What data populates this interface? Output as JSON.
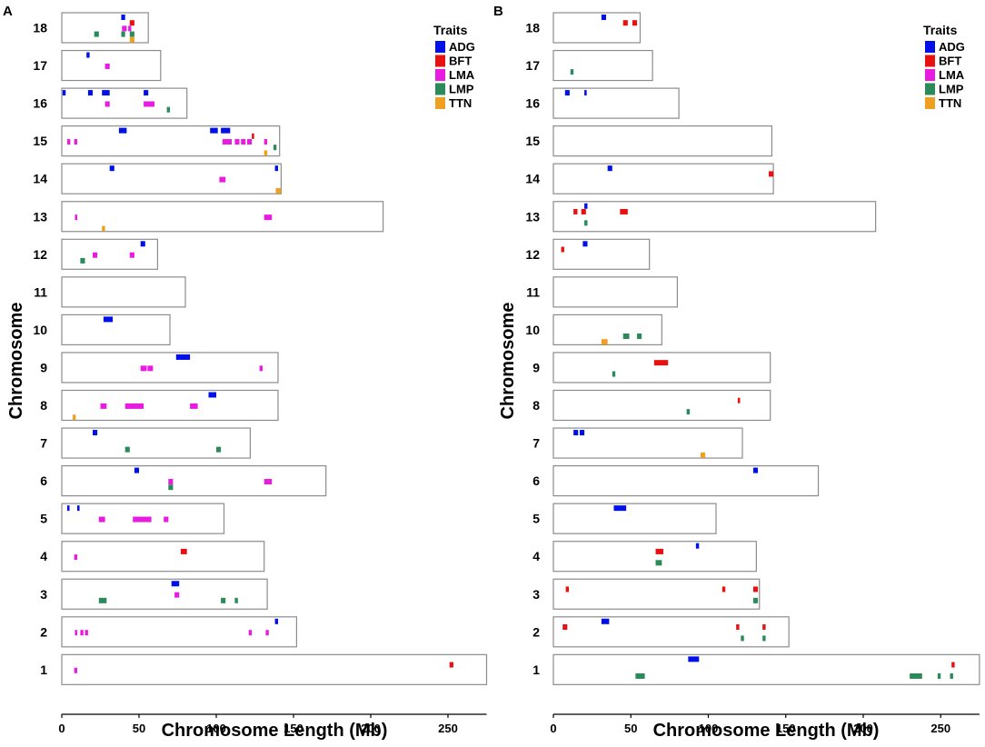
{
  "chart_data": [
    {
      "panel": "A",
      "type": "chromosome-ideogram",
      "xlabel": "Chromosome Length (Mb)",
      "ylabel": "Chromosome",
      "xlim": [
        0,
        275
      ],
      "xticks": [
        0,
        50,
        100,
        150,
        200,
        250
      ],
      "legend": {
        "title": "Traits",
        "position": "top-right",
        "entries": [
          "ADG",
          "BFT",
          "LMA",
          "LMP",
          "TTN"
        ]
      },
      "chromosomes": [
        {
          "name": "18",
          "length": 56
        },
        {
          "name": "17",
          "length": 64
        },
        {
          "name": "16",
          "length": 81
        },
        {
          "name": "15",
          "length": 141
        },
        {
          "name": "14",
          "length": 142
        },
        {
          "name": "13",
          "length": 208
        },
        {
          "name": "12",
          "length": 62
        },
        {
          "name": "11",
          "length": 80
        },
        {
          "name": "10",
          "length": 70
        },
        {
          "name": "9",
          "length": 140
        },
        {
          "name": "8",
          "length": 140
        },
        {
          "name": "7",
          "length": 122
        },
        {
          "name": "6",
          "length": 171
        },
        {
          "name": "5",
          "length": 105
        },
        {
          "name": "4",
          "length": 131
        },
        {
          "name": "3",
          "length": 133
        },
        {
          "name": "2",
          "length": 152
        },
        {
          "name": "1",
          "length": 275
        }
      ],
      "qtls": [
        {
          "chr": "18",
          "trait": "ADG",
          "start": 38.5,
          "end": 41
        },
        {
          "chr": "18",
          "trait": "BFT",
          "start": 44,
          "end": 47
        },
        {
          "chr": "18",
          "trait": "LMA",
          "start": 39,
          "end": 42
        },
        {
          "chr": "18",
          "trait": "LMA",
          "start": 43,
          "end": 45
        },
        {
          "chr": "18",
          "trait": "LMP",
          "start": 21,
          "end": 24
        },
        {
          "chr": "18",
          "trait": "LMP",
          "start": 38.5,
          "end": 41
        },
        {
          "chr": "18",
          "trait": "LMP",
          "start": 44,
          "end": 47
        },
        {
          "chr": "18",
          "trait": "TTN",
          "start": 44,
          "end": 47
        },
        {
          "chr": "17",
          "trait": "ADG",
          "start": 16,
          "end": 18
        },
        {
          "chr": "17",
          "trait": "LMA",
          "start": 28,
          "end": 31
        },
        {
          "chr": "16",
          "trait": "ADG",
          "start": 0.5,
          "end": 2.5
        },
        {
          "chr": "16",
          "trait": "ADG",
          "start": 17,
          "end": 20
        },
        {
          "chr": "16",
          "trait": "ADG",
          "start": 26,
          "end": 31
        },
        {
          "chr": "16",
          "trait": "ADG",
          "start": 53,
          "end": 56
        },
        {
          "chr": "16",
          "trait": "LMA",
          "start": 28,
          "end": 31
        },
        {
          "chr": "16",
          "trait": "LMA",
          "start": 53,
          "end": 60
        },
        {
          "chr": "16",
          "trait": "LMP",
          "start": 68,
          "end": 70
        },
        {
          "chr": "15",
          "trait": "ADG",
          "start": 37,
          "end": 42
        },
        {
          "chr": "15",
          "trait": "ADG",
          "start": 96,
          "end": 101
        },
        {
          "chr": "15",
          "trait": "ADG",
          "start": 103,
          "end": 109
        },
        {
          "chr": "15",
          "trait": "BFT",
          "start": 123,
          "end": 124.5
        },
        {
          "chr": "15",
          "trait": "LMA",
          "start": 3.5,
          "end": 5.5
        },
        {
          "chr": "15",
          "trait": "LMA",
          "start": 8,
          "end": 10
        },
        {
          "chr": "15",
          "trait": "LMA",
          "start": 104,
          "end": 110
        },
        {
          "chr": "15",
          "trait": "LMA",
          "start": 112,
          "end": 115
        },
        {
          "chr": "15",
          "trait": "LMA",
          "start": 116,
          "end": 119
        },
        {
          "chr": "15",
          "trait": "LMA",
          "start": 120,
          "end": 123
        },
        {
          "chr": "15",
          "trait": "LMA",
          "start": 131,
          "end": 133
        },
        {
          "chr": "15",
          "trait": "LMP",
          "start": 137,
          "end": 139
        },
        {
          "chr": "15",
          "trait": "TTN",
          "start": 131,
          "end": 133
        },
        {
          "chr": "14",
          "trait": "ADG",
          "start": 31,
          "end": 34
        },
        {
          "chr": "14",
          "trait": "ADG",
          "start": 138,
          "end": 140
        },
        {
          "chr": "14",
          "trait": "LMA",
          "start": 102,
          "end": 106
        },
        {
          "chr": "14",
          "trait": "TTN",
          "start": 138.5,
          "end": 142
        },
        {
          "chr": "13",
          "trait": "LMA",
          "start": 8.5,
          "end": 10
        },
        {
          "chr": "13",
          "trait": "LMA",
          "start": 131,
          "end": 136
        },
        {
          "chr": "13",
          "trait": "TTN",
          "start": 26,
          "end": 28
        },
        {
          "chr": "12",
          "trait": "ADG",
          "start": 51,
          "end": 54
        },
        {
          "chr": "12",
          "trait": "LMA",
          "start": 20,
          "end": 23
        },
        {
          "chr": "12",
          "trait": "LMA",
          "start": 44,
          "end": 47
        },
        {
          "chr": "12",
          "trait": "LMP",
          "start": 12,
          "end": 15
        },
        {
          "chr": "10",
          "trait": "ADG",
          "start": 27,
          "end": 33
        },
        {
          "chr": "9",
          "trait": "ADG",
          "start": 74,
          "end": 83
        },
        {
          "chr": "9",
          "trait": "LMA",
          "start": 51,
          "end": 55
        },
        {
          "chr": "9",
          "trait": "LMA",
          "start": 55.5,
          "end": 59
        },
        {
          "chr": "9",
          "trait": "LMA",
          "start": 128,
          "end": 130
        },
        {
          "chr": "8",
          "trait": "ADG",
          "start": 95,
          "end": 100
        },
        {
          "chr": "8",
          "trait": "LMA",
          "start": 25,
          "end": 29
        },
        {
          "chr": "8",
          "trait": "LMA",
          "start": 41,
          "end": 53
        },
        {
          "chr": "8",
          "trait": "LMA",
          "start": 83,
          "end": 88
        },
        {
          "chr": "8",
          "trait": "TTN",
          "start": 7,
          "end": 9
        },
        {
          "chr": "7",
          "trait": "ADG",
          "start": 20,
          "end": 23
        },
        {
          "chr": "7",
          "trait": "LMP",
          "start": 41,
          "end": 44
        },
        {
          "chr": "7",
          "trait": "LMP",
          "start": 100,
          "end": 103
        },
        {
          "chr": "6",
          "trait": "ADG",
          "start": 47,
          "end": 50
        },
        {
          "chr": "6",
          "trait": "LMA",
          "start": 69,
          "end": 72
        },
        {
          "chr": "6",
          "trait": "LMA",
          "start": 131,
          "end": 136
        },
        {
          "chr": "6",
          "trait": "LMP",
          "start": 69,
          "end": 72
        },
        {
          "chr": "5",
          "trait": "ADG",
          "start": 3.5,
          "end": 5
        },
        {
          "chr": "5",
          "trait": "ADG",
          "start": 10,
          "end": 11.5
        },
        {
          "chr": "5",
          "trait": "LMA",
          "start": 24,
          "end": 28
        },
        {
          "chr": "5",
          "trait": "LMA",
          "start": 46,
          "end": 58
        },
        {
          "chr": "5",
          "trait": "LMA",
          "start": 66,
          "end": 69
        },
        {
          "chr": "4",
          "trait": "BFT",
          "start": 77,
          "end": 81
        },
        {
          "chr": "4",
          "trait": "LMA",
          "start": 8,
          "end": 10
        },
        {
          "chr": "3",
          "trait": "ADG",
          "start": 71,
          "end": 76
        },
        {
          "chr": "3",
          "trait": "LMA",
          "start": 73,
          "end": 76
        },
        {
          "chr": "3",
          "trait": "LMP",
          "start": 24,
          "end": 29
        },
        {
          "chr": "3",
          "trait": "LMP",
          "start": 103,
          "end": 106
        },
        {
          "chr": "3",
          "trait": "LMP",
          "start": 112,
          "end": 114
        },
        {
          "chr": "2",
          "trait": "ADG",
          "start": 138,
          "end": 140
        },
        {
          "chr": "2",
          "trait": "LMA",
          "start": 8.5,
          "end": 10
        },
        {
          "chr": "2",
          "trait": "LMA",
          "start": 12,
          "end": 14
        },
        {
          "chr": "2",
          "trait": "LMA",
          "start": 15,
          "end": 17
        },
        {
          "chr": "2",
          "trait": "LMA",
          "start": 121,
          "end": 123
        },
        {
          "chr": "2",
          "trait": "LMA",
          "start": 132,
          "end": 134
        },
        {
          "chr": "1",
          "trait": "BFT",
          "start": 251,
          "end": 253.5
        },
        {
          "chr": "1",
          "trait": "LMA",
          "start": 8,
          "end": 10
        }
      ]
    },
    {
      "panel": "B",
      "type": "chromosome-ideogram",
      "xlabel": "Chromosome Length (Mb)",
      "ylabel": "Chromosome",
      "xlim": [
        0,
        275
      ],
      "xticks": [
        0,
        50,
        100,
        150,
        200,
        250
      ],
      "legend": {
        "title": "Traits",
        "position": "top-right",
        "entries": [
          "ADG",
          "BFT",
          "LMA",
          "LMP",
          "TTN"
        ]
      },
      "chromosomes": [
        {
          "name": "18",
          "length": 56
        },
        {
          "name": "17",
          "length": 64
        },
        {
          "name": "16",
          "length": 81
        },
        {
          "name": "15",
          "length": 141
        },
        {
          "name": "14",
          "length": 142
        },
        {
          "name": "13",
          "length": 208
        },
        {
          "name": "12",
          "length": 62
        },
        {
          "name": "11",
          "length": 80
        },
        {
          "name": "10",
          "length": 70
        },
        {
          "name": "9",
          "length": 140
        },
        {
          "name": "8",
          "length": 140
        },
        {
          "name": "7",
          "length": 122
        },
        {
          "name": "6",
          "length": 171
        },
        {
          "name": "5",
          "length": 105
        },
        {
          "name": "4",
          "length": 131
        },
        {
          "name": "3",
          "length": 133
        },
        {
          "name": "2",
          "length": 152
        },
        {
          "name": "1",
          "length": 275
        }
      ],
      "qtls": [
        {
          "chr": "18",
          "trait": "ADG",
          "start": 31,
          "end": 34
        },
        {
          "chr": "18",
          "trait": "BFT",
          "start": 45,
          "end": 48
        },
        {
          "chr": "18",
          "trait": "BFT",
          "start": 51,
          "end": 54
        },
        {
          "chr": "17",
          "trait": "LMP",
          "start": 11,
          "end": 13
        },
        {
          "chr": "16",
          "trait": "ADG",
          "start": 7.5,
          "end": 10.5
        },
        {
          "chr": "16",
          "trait": "ADG",
          "start": 20,
          "end": 21.5
        },
        {
          "chr": "14",
          "trait": "ADG",
          "start": 35,
          "end": 38
        },
        {
          "chr": "14",
          "trait": "BFT",
          "start": 139,
          "end": 142
        },
        {
          "chr": "13",
          "trait": "ADG",
          "start": 20,
          "end": 22
        },
        {
          "chr": "13",
          "trait": "BFT",
          "start": 13,
          "end": 15.5
        },
        {
          "chr": "13",
          "trait": "BFT",
          "start": 18,
          "end": 21
        },
        {
          "chr": "13",
          "trait": "BFT",
          "start": 43,
          "end": 48
        },
        {
          "chr": "13",
          "trait": "LMP",
          "start": 20,
          "end": 22
        },
        {
          "chr": "12",
          "trait": "ADG",
          "start": 19,
          "end": 22
        },
        {
          "chr": "12",
          "trait": "BFT",
          "start": 5,
          "end": 7
        },
        {
          "chr": "10",
          "trait": "LMP",
          "start": 45,
          "end": 49
        },
        {
          "chr": "10",
          "trait": "LMP",
          "start": 54,
          "end": 57
        },
        {
          "chr": "10",
          "trait": "TTN",
          "start": 31,
          "end": 35
        },
        {
          "chr": "9",
          "trait": "BFT",
          "start": 65,
          "end": 74
        },
        {
          "chr": "9",
          "trait": "LMP",
          "start": 38,
          "end": 40
        },
        {
          "chr": "8",
          "trait": "BFT",
          "start": 119,
          "end": 120.5
        },
        {
          "chr": "8",
          "trait": "LMP",
          "start": 86,
          "end": 88
        },
        {
          "chr": "7",
          "trait": "ADG",
          "start": 13,
          "end": 16
        },
        {
          "chr": "7",
          "trait": "ADG",
          "start": 17,
          "end": 20
        },
        {
          "chr": "7",
          "trait": "TTN",
          "start": 95,
          "end": 98
        },
        {
          "chr": "6",
          "trait": "ADG",
          "start": 129,
          "end": 132
        },
        {
          "chr": "5",
          "trait": "ADG",
          "start": 39,
          "end": 47
        },
        {
          "chr": "4",
          "trait": "ADG",
          "start": 92,
          "end": 94
        },
        {
          "chr": "4",
          "trait": "BFT",
          "start": 66,
          "end": 71
        },
        {
          "chr": "4",
          "trait": "LMP",
          "start": 66,
          "end": 70
        },
        {
          "chr": "3",
          "trait": "BFT",
          "start": 8,
          "end": 10
        },
        {
          "chr": "3",
          "trait": "BFT",
          "start": 109,
          "end": 111
        },
        {
          "chr": "3",
          "trait": "BFT",
          "start": 129,
          "end": 132
        },
        {
          "chr": "3",
          "trait": "LMP",
          "start": 129,
          "end": 132
        },
        {
          "chr": "2",
          "trait": "ADG",
          "start": 31,
          "end": 36
        },
        {
          "chr": "2",
          "trait": "BFT",
          "start": 6,
          "end": 9
        },
        {
          "chr": "2",
          "trait": "BFT",
          "start": 118,
          "end": 120
        },
        {
          "chr": "2",
          "trait": "BFT",
          "start": 135,
          "end": 137
        },
        {
          "chr": "2",
          "trait": "LMP",
          "start": 121,
          "end": 123
        },
        {
          "chr": "2",
          "trait": "LMP",
          "start": 135,
          "end": 137
        },
        {
          "chr": "1",
          "trait": "ADG",
          "start": 87,
          "end": 94
        },
        {
          "chr": "1",
          "trait": "BFT",
          "start": 257,
          "end": 259
        },
        {
          "chr": "1",
          "trait": "LMP",
          "start": 53,
          "end": 59
        },
        {
          "chr": "1",
          "trait": "LMP",
          "start": 230,
          "end": 238
        },
        {
          "chr": "1",
          "trait": "LMP",
          "start": 248,
          "end": 250
        },
        {
          "chr": "1",
          "trait": "LMP",
          "start": 256,
          "end": 258
        }
      ]
    }
  ],
  "trait_colors": {
    "ADG": "#0010e8",
    "BFT": "#e81010",
    "LMA": "#e81ce0",
    "LMP": "#2a8a5a",
    "TTN": "#f0a020"
  }
}
